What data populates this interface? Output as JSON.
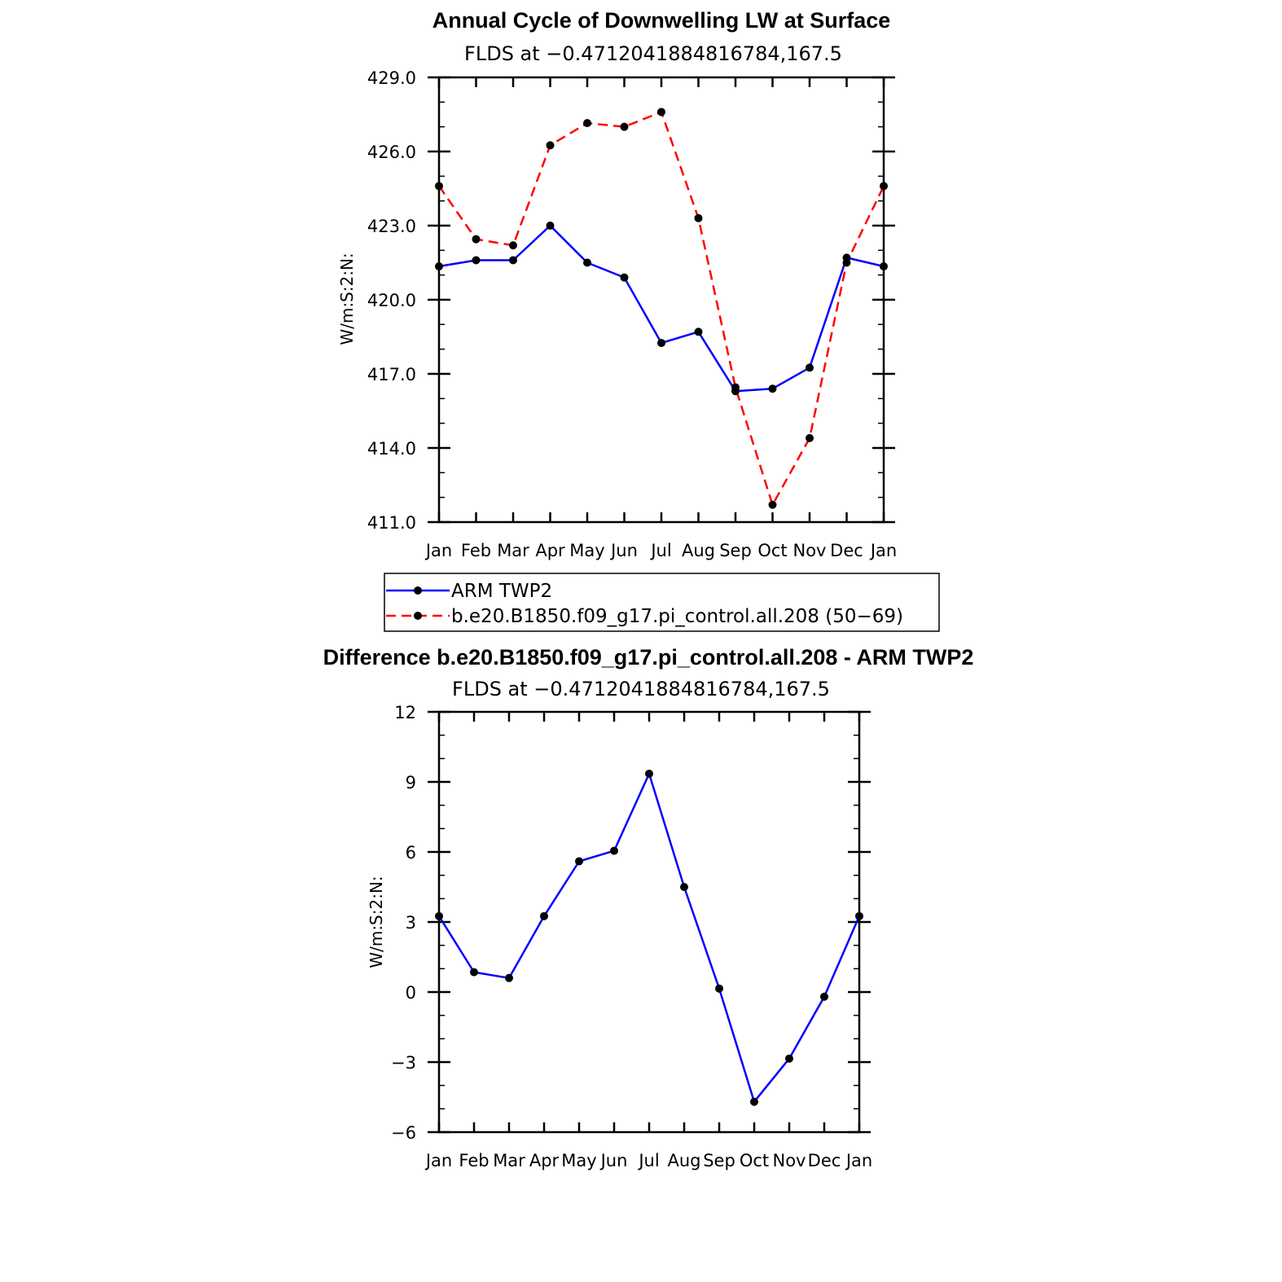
{
  "chart_data": [
    {
      "type": "line",
      "title": "Annual Cycle of Downwelling LW at Surface",
      "subtitle": "FLDS at −0.4712041884816784,167.5",
      "ylabel": "W/m:S:2:N:",
      "categories": [
        "Jan",
        "Feb",
        "Mar",
        "Apr",
        "May",
        "Jun",
        "Jul",
        "Aug",
        "Sep",
        "Oct",
        "Nov",
        "Dec",
        "Jan"
      ],
      "ylim": [
        411,
        429
      ],
      "yticks": [
        "411.0",
        "414.0",
        "417.0",
        "420.0",
        "423.0",
        "426.0",
        "429.0"
      ],
      "series": [
        {
          "name": "ARM TWP2",
          "color": "#0000ff",
          "dash": "solid",
          "values": [
            421.35,
            421.6,
            421.6,
            423.0,
            421.5,
            420.9,
            418.25,
            418.7,
            416.3,
            416.4,
            417.25,
            421.7,
            421.35
          ]
        },
        {
          "name": "b.e20.B1850.f09_g17.pi_control.all.208 (50−69)",
          "color": "#ff0000",
          "dash": "dashed",
          "values": [
            424.6,
            422.45,
            422.2,
            426.25,
            427.15,
            427.0,
            427.6,
            423.3,
            416.45,
            411.7,
            414.4,
            421.5,
            424.6
          ]
        }
      ],
      "legend": "below"
    },
    {
      "type": "line",
      "title": "Difference b.e20.B1850.f09_g17.pi_control.all.208 - ARM TWP2",
      "subtitle": "FLDS at −0.4712041884816784,167.5",
      "ylabel": "W/m:S:2:N:",
      "categories": [
        "Jan",
        "Feb",
        "Mar",
        "Apr",
        "May",
        "Jun",
        "Jul",
        "Aug",
        "Sep",
        "Oct",
        "Nov",
        "Dec",
        "Jan"
      ],
      "ylim": [
        -6,
        12
      ],
      "yticks": [
        "−6",
        "−3",
        "0",
        "3",
        "6",
        "9",
        "12"
      ],
      "series": [
        {
          "color": "#0000ff",
          "dash": "solid",
          "values": [
            3.25,
            0.85,
            0.6,
            3.25,
            5.6,
            6.05,
            9.35,
            4.5,
            0.15,
            -4.7,
            -2.85,
            -0.2,
            3.25
          ]
        }
      ]
    }
  ]
}
